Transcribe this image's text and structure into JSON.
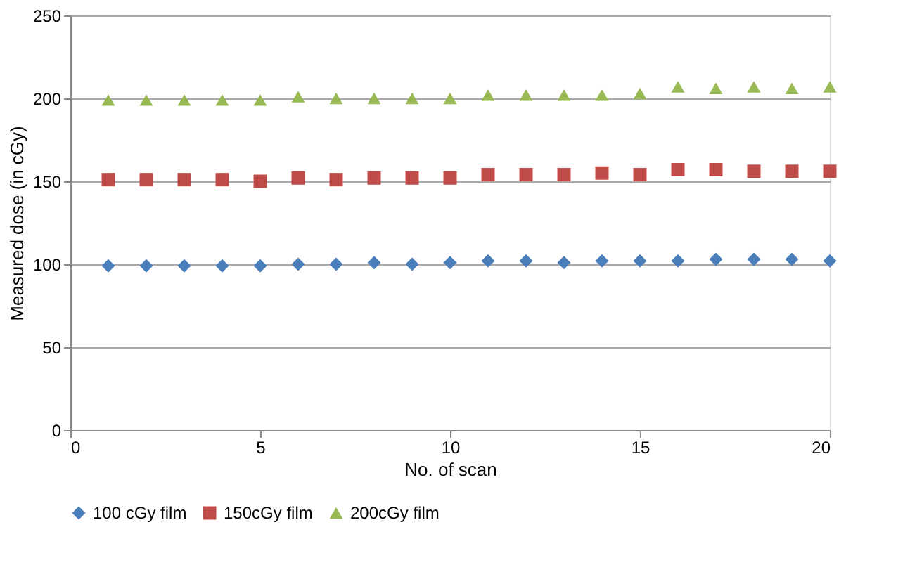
{
  "chart_data": {
    "type": "scatter",
    "xlabel": "No. of scan",
    "ylabel": "Measured dose (in cGy)",
    "x": [
      1,
      2,
      3,
      4,
      5,
      6,
      7,
      8,
      9,
      10,
      11,
      12,
      13,
      14,
      15,
      16,
      17,
      18,
      19,
      20
    ],
    "series": [
      {
        "name": "100 cGy film",
        "color": "#4a7ebb",
        "marker": "diamond",
        "values": [
          99,
          99,
          99,
          99,
          99,
          100,
          100,
          101,
          100,
          101,
          102,
          102,
          101,
          102,
          102,
          102,
          103,
          103,
          103,
          102
        ]
      },
      {
        "name": "150cGy film",
        "color": "#be4b48",
        "marker": "square",
        "values": [
          151,
          151,
          151,
          151,
          150,
          152,
          151,
          152,
          152,
          152,
          154,
          154,
          154,
          155,
          154,
          157,
          157,
          156,
          156,
          156
        ]
      },
      {
        "name": "200cGy film",
        "color": "#98b954",
        "marker": "triangle",
        "values": [
          199,
          199,
          199,
          199,
          199,
          201,
          200,
          200,
          200,
          200,
          202,
          202,
          202,
          202,
          203,
          207,
          206,
          207,
          206,
          207
        ]
      }
    ],
    "xlim": [
      0,
      20
    ],
    "xticks": [
      0,
      5,
      10,
      15,
      20
    ],
    "ylim": [
      0,
      250
    ],
    "yticks": [
      0,
      50,
      100,
      150,
      200,
      250
    ],
    "grid": "y",
    "legend": "bottom"
  }
}
